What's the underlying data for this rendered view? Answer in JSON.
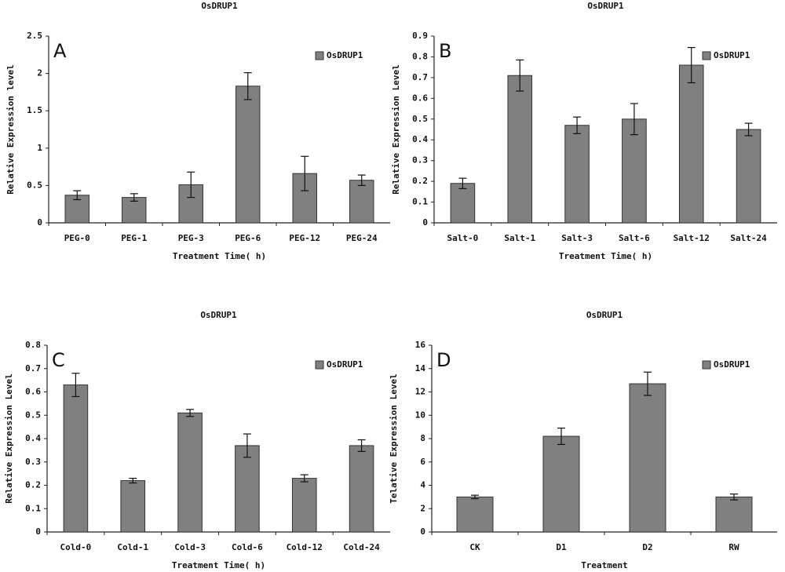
{
  "chart_data": [
    {
      "type": "bar",
      "title": "OsDRUP1",
      "panel_label": "A",
      "y_label": "Relative Expression level",
      "x_label": "Treatment Time( h)",
      "categories": [
        "PEG-0",
        "PEG-1",
        "PEG-3",
        "PEG-6",
        "PEG-12",
        "PEG-24"
      ],
      "series": [
        {
          "name": "OsDRUP1",
          "color": "#808080",
          "values": [
            0.37,
            0.34,
            0.51,
            1.83,
            0.66,
            0.57
          ],
          "errors": [
            0.06,
            0.05,
            0.17,
            0.18,
            0.23,
            0.07
          ]
        }
      ],
      "ylim": [
        0,
        2.5
      ],
      "yticks": [
        0,
        0.5,
        1,
        1.5,
        2,
        2.5
      ],
      "legend": "upper right"
    },
    {
      "type": "bar",
      "title": "OsDRUP1",
      "panel_label": "B",
      "y_label": "Relative Expression Level",
      "x_label": "Treatment Time( h)",
      "categories": [
        "Salt-0",
        "Salt-1",
        "Salt-3",
        "Salt-6",
        "Salt-12",
        "Salt-24"
      ],
      "series": [
        {
          "name": "OsDRUP1",
          "color": "#808080",
          "values": [
            0.19,
            0.71,
            0.47,
            0.5,
            0.76,
            0.45
          ],
          "errors": [
            0.025,
            0.075,
            0.04,
            0.075,
            0.085,
            0.03
          ]
        }
      ],
      "ylim": [
        0,
        0.9
      ],
      "yticks": [
        0,
        0.1,
        0.2,
        0.3,
        0.4,
        0.5,
        0.6,
        0.7,
        0.8,
        0.9
      ],
      "legend": "upper right"
    },
    {
      "type": "bar",
      "title": "OsDRUP1",
      "panel_label": "C",
      "y_label": "Relative Expression Level",
      "x_label": "Treatment Time( h)",
      "categories": [
        "Cold-0",
        "Cold-1",
        "Cold-3",
        "Cold-6",
        "Cold-12",
        "Cold-24"
      ],
      "series": [
        {
          "name": "OsDRUP1",
          "color": "#808080",
          "values": [
            0.63,
            0.22,
            0.51,
            0.37,
            0.23,
            0.37
          ],
          "errors": [
            0.05,
            0.01,
            0.015,
            0.05,
            0.015,
            0.025
          ]
        }
      ],
      "ylim": [
        0,
        0.8
      ],
      "yticks": [
        0,
        0.1,
        0.2,
        0.3,
        0.4,
        0.5,
        0.6,
        0.7,
        0.8
      ],
      "legend": "upper right"
    },
    {
      "type": "bar",
      "title": "OsDRUP1",
      "panel_label": "D",
      "y_label": "Telative Expression Level",
      "x_label": "Treatment",
      "categories": [
        "CK",
        "D1",
        "D2",
        "RW"
      ],
      "series": [
        {
          "name": "OsDRUP1",
          "color": "#808080",
          "values": [
            3.0,
            8.2,
            12.7,
            3.0
          ],
          "errors": [
            0.15,
            0.7,
            1.0,
            0.25
          ]
        }
      ],
      "ylim": [
        0,
        16
      ],
      "yticks": [
        0,
        2,
        4,
        6,
        8,
        10,
        12,
        14,
        16
      ],
      "legend": "upper right"
    }
  ]
}
